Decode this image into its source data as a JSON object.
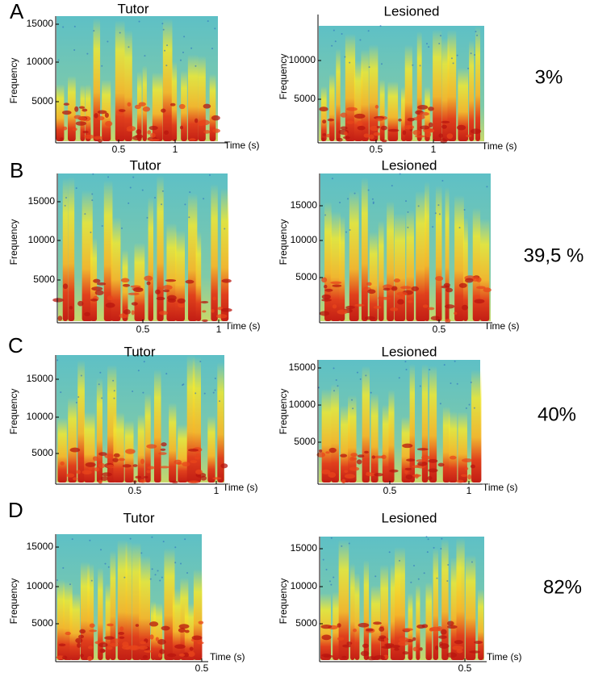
{
  "panels": [
    {
      "label": "A",
      "similarity": "3%",
      "plots": [
        {
          "title": "Tutor",
          "y_label": "Frequency",
          "x_label": "Time (s)",
          "yticks": [
            5000,
            10000,
            15000
          ],
          "xticks": [
            0.5,
            1
          ]
        },
        {
          "title": "Lesioned",
          "y_label": "Frequency",
          "x_label": "Time (s)",
          "yticks": [
            5000,
            10000
          ],
          "xticks": [
            0.5,
            1
          ]
        }
      ]
    },
    {
      "label": "B",
      "similarity": "39,5 %",
      "plots": [
        {
          "title": "Tutor",
          "y_label": "Frequency",
          "x_label": "Time (s)",
          "yticks": [
            5000,
            10000,
            15000
          ],
          "xticks": [
            0.5,
            1
          ]
        },
        {
          "title": "Lesioned",
          "y_label": "Frequency",
          "x_label": "Time (s)",
          "yticks": [
            5000,
            10000,
            15000
          ],
          "xticks": [
            0.5
          ]
        }
      ]
    },
    {
      "label": "C",
      "similarity": "40%",
      "plots": [
        {
          "title": "Tutor",
          "y_label": "Frequency",
          "x_label": "Time (s)",
          "yticks": [
            5000,
            10000,
            15000
          ],
          "xticks": [
            0.5,
            1
          ]
        },
        {
          "title": "Lesioned",
          "y_label": "Frequency",
          "x_label": "Time (s)",
          "yticks": [
            5000,
            10000,
            15000
          ],
          "xticks": [
            0.5,
            1
          ]
        }
      ]
    },
    {
      "label": "D",
      "similarity": "82%",
      "plots": [
        {
          "title": "Tutor",
          "y_label": "Frequency",
          "x_label": "Time (s)",
          "yticks": [
            5000,
            10000,
            15000
          ],
          "xticks": [
            0.5
          ]
        },
        {
          "title": "Lesioned",
          "y_label": "Frequency",
          "x_label": "Time (s)",
          "yticks": [
            5000,
            10000,
            15000
          ],
          "xticks": [
            0.5
          ]
        }
      ]
    }
  ]
}
